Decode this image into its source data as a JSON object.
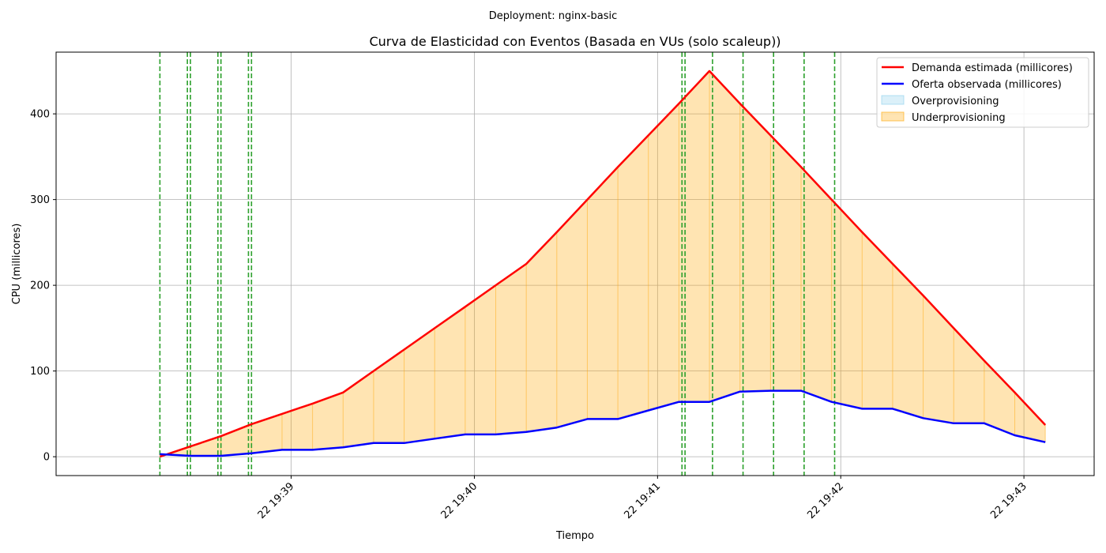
{
  "suptitle": "Deployment: nginx-basic",
  "chart_data": {
    "type": "line",
    "title": "Curva de Elasticidad con Eventos (Basada en VUs (solo scaleup))",
    "xlabel": "Tiempo",
    "ylabel": "CPU (millicores)",
    "x": [
      "19:38:17",
      "19:38:27",
      "19:38:37",
      "19:38:47",
      "19:38:57",
      "19:39:07",
      "19:39:17",
      "19:39:27",
      "19:39:37",
      "19:39:47",
      "19:39:57",
      "19:40:07",
      "19:40:17",
      "19:40:27",
      "19:40:37",
      "19:40:47",
      "19:40:57",
      "19:41:07",
      "19:41:17",
      "19:41:27",
      "19:41:37",
      "19:41:47",
      "19:41:57",
      "19:42:07",
      "19:42:17",
      "19:42:27",
      "19:42:37",
      "19:42:47",
      "19:42:57",
      "19:43:07"
    ],
    "series": [
      {
        "name": "Demanda estimada (millicores)",
        "color": "#ff0000",
        "values": [
          0,
          12,
          24,
          38,
          50,
          62,
          75,
          100,
          125,
          150,
          175,
          200,
          225,
          262,
          300,
          338,
          375,
          412,
          450,
          412,
          375,
          338,
          300,
          262,
          225,
          188,
          150,
          112,
          75,
          37
        ]
      },
      {
        "name": "Oferta observada (millicores)",
        "color": "#0000ff",
        "values": [
          3,
          1,
          1,
          4,
          8,
          8,
          11,
          16,
          16,
          21,
          26,
          26,
          29,
          34,
          44,
          44,
          54,
          64,
          64,
          76,
          77,
          77,
          64,
          56,
          56,
          45,
          39,
          39,
          25,
          17
        ]
      }
    ],
    "fills": [
      {
        "name": "Overprovisioning",
        "color": "#87ceeb"
      },
      {
        "name": "Underprovisioning",
        "color": "#ffa500"
      }
    ],
    "event_lines": [
      "19:38:17",
      "19:38:26",
      "19:38:27",
      "19:38:36",
      "19:38:37",
      "19:38:46",
      "19:38:47",
      "19:41:08",
      "19:41:09",
      "19:41:18",
      "19:41:28",
      "19:41:38",
      "19:41:48",
      "19:41:58"
    ],
    "event_color": "#2ca02c",
    "x_ticks": [
      "22 19:39",
      "22 19:40",
      "22 19:41",
      "22 19:42",
      "22 19:43"
    ],
    "x_tick_times": [
      "19:39:00",
      "19:40:00",
      "19:41:00",
      "19:42:00",
      "19:43:00"
    ],
    "y_ticks": [
      0,
      100,
      200,
      300,
      400
    ],
    "ylim": [
      -22,
      472
    ],
    "xlim": [
      "19:37:43",
      "19:43:23"
    ],
    "grid": true,
    "legend_position": "top-right"
  }
}
